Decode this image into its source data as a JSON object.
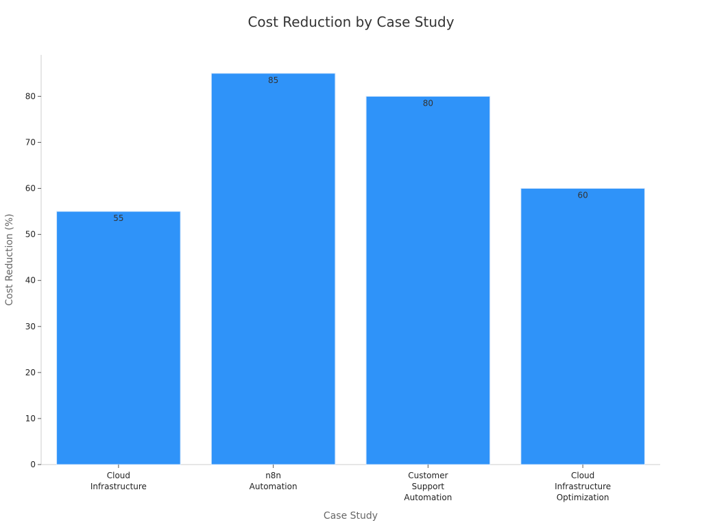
{
  "chart_data": {
    "type": "bar",
    "title": "Cost Reduction by Case Study",
    "xlabel": "Case Study",
    "ylabel": "Cost Reduction (%)",
    "categories": [
      [
        "Cloud",
        "Infrastructure"
      ],
      [
        "n8n",
        "Automation"
      ],
      [
        "Customer",
        "Support",
        "Automation"
      ],
      [
        "Cloud",
        "Infrastructure",
        "Optimization"
      ]
    ],
    "values": [
      55,
      85,
      80,
      60
    ],
    "ylim": [
      0,
      89
    ],
    "yticks": [
      0,
      10,
      20,
      30,
      40,
      50,
      60,
      70,
      80
    ],
    "grid": false,
    "bar_color": "#2f93f9",
    "axis_color": "#cccccc"
  }
}
